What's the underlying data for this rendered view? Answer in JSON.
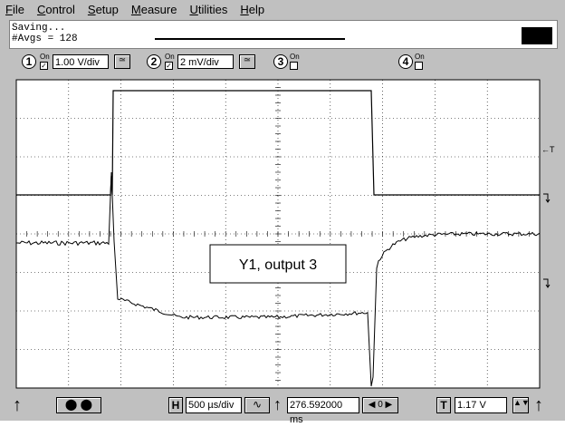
{
  "menu": [
    "File",
    "Control",
    "Setup",
    "Measure",
    "Utilities",
    "Help"
  ],
  "status": {
    "line1": "Saving...",
    "line2": "#Avgs = 128"
  },
  "channels": [
    {
      "number": "1",
      "on": "On",
      "scale": "1.00 V/div"
    },
    {
      "number": "2",
      "on": "On",
      "scale": "2 mV/div"
    },
    {
      "number": "3",
      "on": "On"
    },
    {
      "number": "4",
      "on": "On"
    }
  ],
  "screen": {
    "annotation": "Y1, output 3",
    "trigger_marker": "←T"
  },
  "bottom": {
    "h_label": "H",
    "timebase": "500 µs/div",
    "delay": "276.592000 ms",
    "t_label": "T",
    "trigger_level": "1.17 V"
  }
}
